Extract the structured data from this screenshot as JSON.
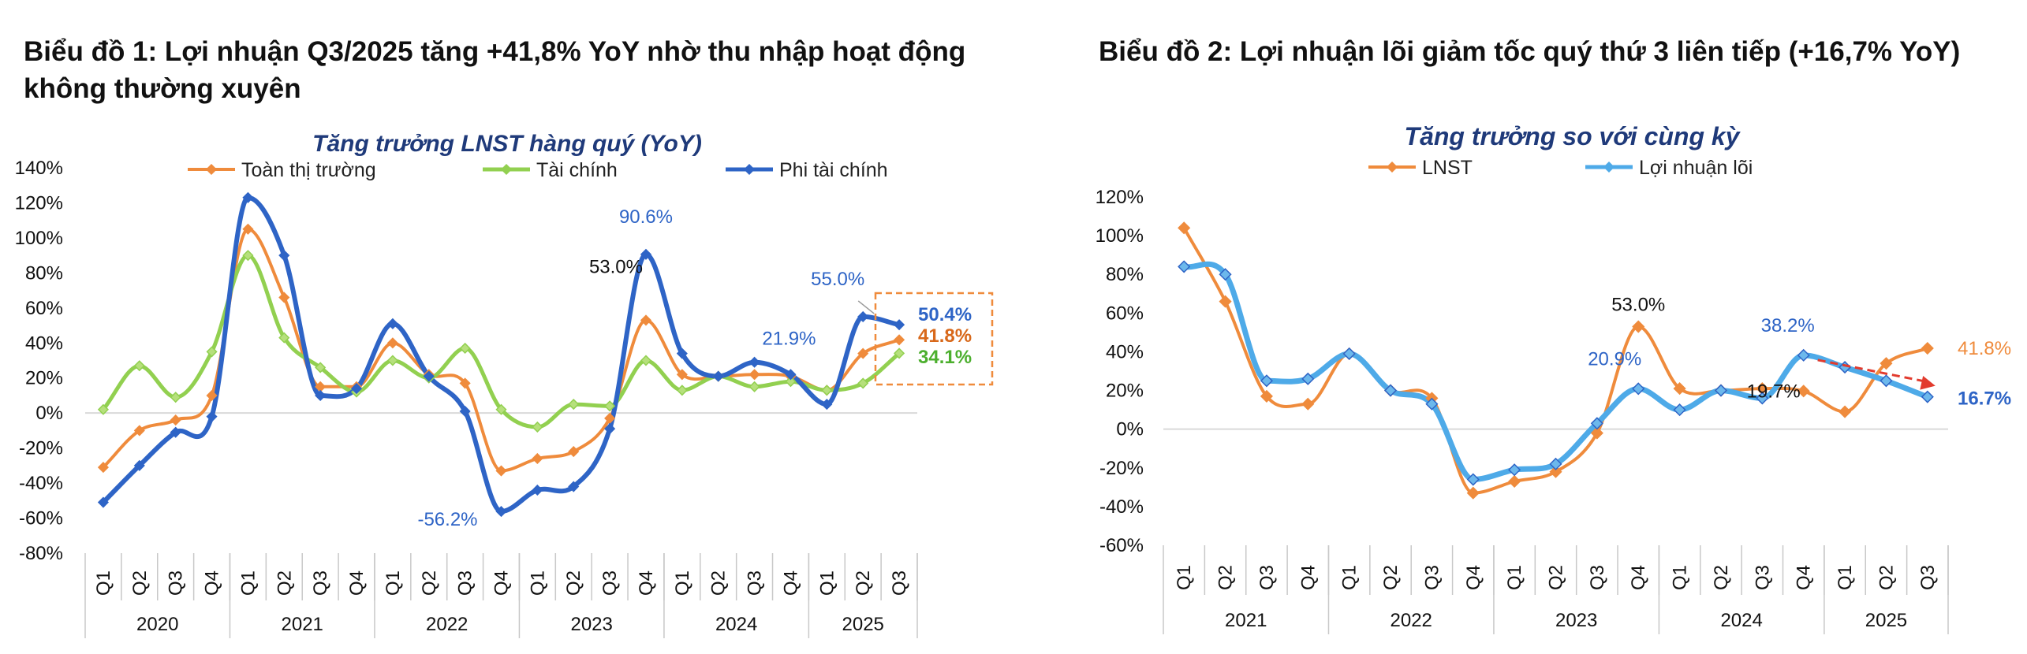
{
  "headings": {
    "chart1": "Biểu đồ 1: Lợi nhuận Q3/2025 tăng +41,8% YoY nhờ thu nhập hoạt động không thường xuyên",
    "chart2": "Biểu đồ 2: Lợi nhuận lõi giảm tốc quý thứ 3 liên tiếp (+16,7% YoY)"
  },
  "chart_data": [
    {
      "type": "line",
      "title": "Tăng trưởng LNST hàng quý (YoY)",
      "ylim": [
        -80,
        140
      ],
      "y_ticks": [
        -80,
        -60,
        -40,
        -20,
        0,
        20,
        40,
        60,
        80,
        100,
        120,
        140
      ],
      "y_unit": "%",
      "quarters": [
        "Q1",
        "Q2",
        "Q3",
        "Q4",
        "Q1",
        "Q2",
        "Q3",
        "Q4",
        "Q1",
        "Q2",
        "Q3",
        "Q4",
        "Q1",
        "Q2",
        "Q3",
        "Q4",
        "Q1",
        "Q2",
        "Q3",
        "Q4",
        "Q1",
        "Q2",
        "Q3"
      ],
      "years": [
        {
          "label": "2020",
          "count": 4
        },
        {
          "label": "2021",
          "count": 4
        },
        {
          "label": "2022",
          "count": 4
        },
        {
          "label": "2023",
          "count": 4
        },
        {
          "label": "2024",
          "count": 4
        },
        {
          "label": "2025",
          "count": 3
        }
      ],
      "legend_position": "top",
      "series": [
        {
          "name": "Toàn thị trường",
          "color": "#ef8b3c",
          "marker": "diamond",
          "width": 4,
          "values": [
            -31,
            -10,
            -4,
            10,
            105,
            66,
            15,
            15,
            40,
            22,
            17,
            -33,
            -26,
            -22,
            -3,
            53,
            22,
            21,
            22,
            21,
            13,
            34,
            41.8
          ]
        },
        {
          "name": "Tài chính",
          "color": "#92d050",
          "marker": "diamond",
          "width": 5,
          "values": [
            2,
            27,
            9,
            35,
            90,
            43,
            26,
            12,
            30,
            20,
            37,
            2,
            -8,
            5,
            4,
            30,
            13,
            21,
            15,
            18,
            13,
            17,
            34.1
          ]
        },
        {
          "name": "Phi tài chính",
          "color": "#2e64c6",
          "marker": "diamond",
          "width": 6,
          "values": [
            -51,
            -30,
            -11,
            -2,
            123,
            90,
            10,
            14,
            51,
            21,
            1,
            -56.2,
            -44,
            -42,
            -9,
            90.6,
            34,
            21,
            29,
            22,
            5,
            55,
            50.4
          ]
        }
      ],
      "data_labels": [
        {
          "text": "90.6%",
          "color": "#2e64c6"
        },
        {
          "text": "53.0%",
          "color": "#111111"
        },
        {
          "text": "-56.2%",
          "color": "#2e64c6"
        },
        {
          "text": "55.0%",
          "color": "#2e64c6"
        },
        {
          "text": "21.9%",
          "color": "#2e64c6"
        }
      ],
      "end_labels": [
        {
          "text": "50.4%",
          "color": "#2e64c6"
        },
        {
          "text": "41.8%",
          "color": "#d8681a"
        },
        {
          "text": "34.1%",
          "color": "#4caf2e"
        }
      ],
      "highlight_box_color": "#ef8b3c"
    },
    {
      "type": "line",
      "title": "Tăng trưởng so với cùng kỳ",
      "ylim": [
        -60,
        120
      ],
      "y_ticks": [
        -60,
        -40,
        -20,
        0,
        20,
        40,
        60,
        80,
        100,
        120
      ],
      "y_unit": "%",
      "quarters": [
        "Q1",
        "Q2",
        "Q3",
        "Q4",
        "Q1",
        "Q2",
        "Q3",
        "Q4",
        "Q1",
        "Q2",
        "Q3",
        "Q4",
        "Q1",
        "Q2",
        "Q3",
        "Q4",
        "Q1",
        "Q2",
        "Q3"
      ],
      "years": [
        {
          "label": "2021",
          "count": 4
        },
        {
          "label": "2022",
          "count": 4
        },
        {
          "label": "2023",
          "count": 4
        },
        {
          "label": "2024",
          "count": 4
        },
        {
          "label": "2025",
          "count": 3
        }
      ],
      "legend_position": "top",
      "series": [
        {
          "name": "LNST",
          "color": "#ef8b3c",
          "marker": "diamond",
          "width": 4,
          "values": [
            104,
            66,
            17,
            13,
            39,
            20,
            16,
            -33,
            -27,
            -22,
            -2,
            53,
            21,
            20,
            21,
            19.7,
            9,
            34,
            41.8
          ]
        },
        {
          "name": "Lợi nhuận lõi",
          "color": "#4eaae8",
          "marker": "diamond",
          "width": 7,
          "values": [
            84,
            80,
            25,
            26,
            39,
            20,
            13,
            -26,
            -21,
            -18,
            3,
            20.9,
            10,
            20,
            16,
            38.2,
            32,
            25,
            16.7
          ]
        }
      ],
      "data_labels": [
        {
          "text": "53.0%",
          "color": "#111111"
        },
        {
          "text": "20.9%",
          "color": "#2e64c6"
        },
        {
          "text": "38.2%",
          "color": "#2e64c6"
        },
        {
          "text": "19.7%",
          "color": "#111111"
        }
      ],
      "end_labels": [
        {
          "text": "41.8%",
          "color": "#ef8b3c"
        },
        {
          "text": "16.7%",
          "color": "#2e64c6"
        }
      ],
      "trend_arrow_color": "#e23b2e"
    }
  ]
}
